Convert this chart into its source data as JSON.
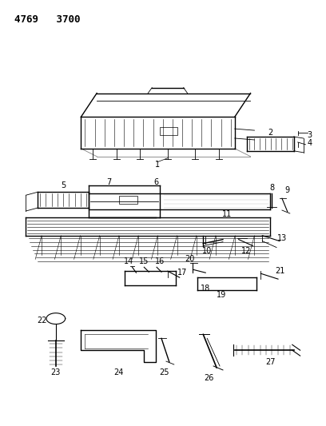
{
  "bg_color": "#ffffff",
  "line_color": "#000000",
  "text_color": "#000000",
  "fig_width": 4.08,
  "fig_height": 5.33,
  "dpi": 100,
  "header": "4769   3700"
}
